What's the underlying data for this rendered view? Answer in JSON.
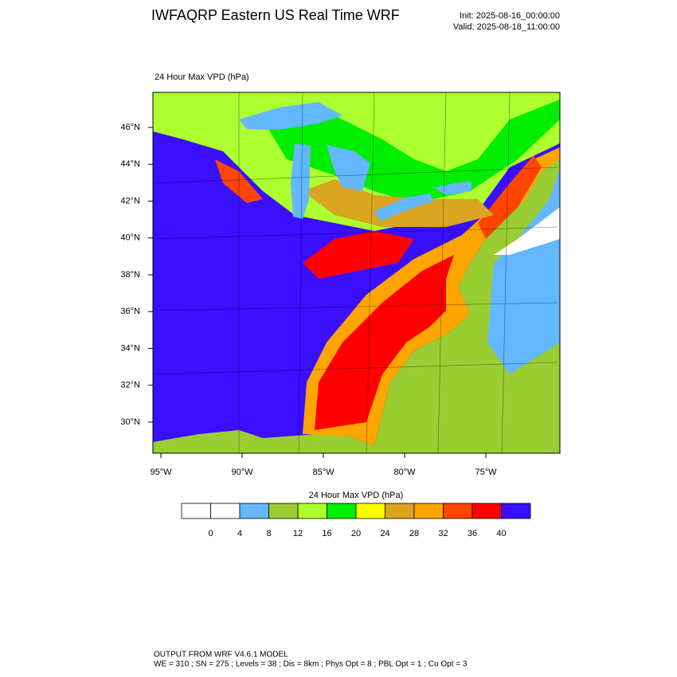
{
  "header": {
    "title": "IWFAQRP Eastern US Real Time WRF",
    "init": "Init: 2025-08-16_00:00:00",
    "valid": "Valid: 2025-08-18_11:00:00"
  },
  "map": {
    "title": "24 Hour Max VPD   (hPa)",
    "lat_labels": [
      "46°N",
      "44°N",
      "42°N",
      "40°N",
      "38°N",
      "36°N",
      "34°N",
      "32°N",
      "30°N"
    ],
    "lon_labels": [
      "95°W",
      "90°W",
      "85°W",
      "80°W",
      "75°W"
    ]
  },
  "colorbar": {
    "title": "24 Hour Max VPD  (hPa)",
    "colors": [
      "#ffffff",
      "#ffffff",
      "#63b8ff",
      "#9acd32",
      "#adff2f",
      "#00ee00",
      "#ffff00",
      "#daa520",
      "#ffa500",
      "#ff4500",
      "#ff0000",
      "#3a0fff"
    ],
    "labels": [
      "0",
      "4",
      "8",
      "12",
      "16",
      "20",
      "24",
      "28",
      "32",
      "36",
      "40"
    ]
  },
  "footer": {
    "line1": "OUTPUT FROM WRF V4.6.1 MODEL",
    "line2": "WE = 310 ; SN = 275 ; Levels = 38 ; Dis = 8km ; Phys Opt = 8 ; PBL Opt = 1 ; Cu Opt = 3"
  }
}
